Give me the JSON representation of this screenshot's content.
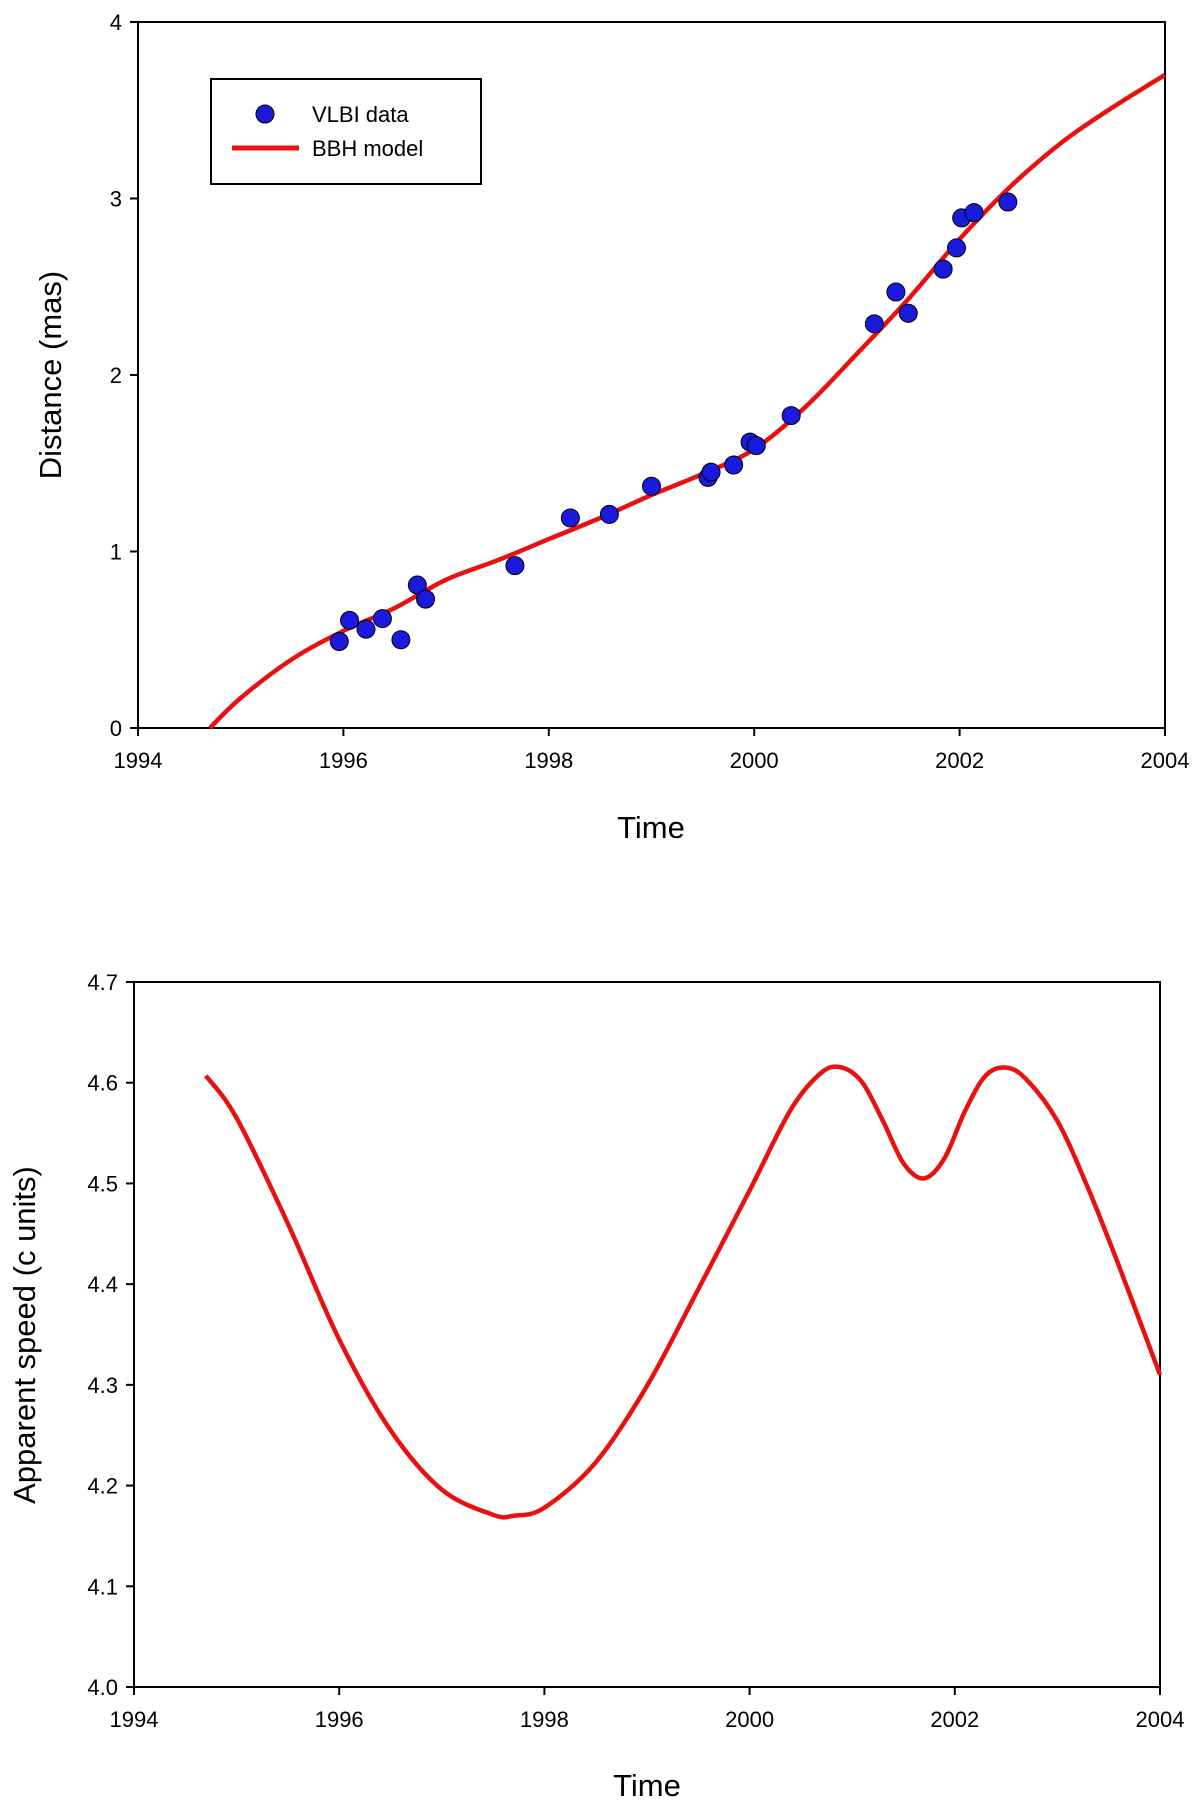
{
  "colors": {
    "data_points": "#1a1adc",
    "model_line": "#e8110f",
    "axes": "#000000"
  },
  "chart_data": [
    {
      "type": "scatter",
      "xlabel": "Time",
      "ylabel": "Distance (mas)",
      "xlim": [
        1994,
        2004
      ],
      "ylim": [
        0,
        4
      ],
      "xticks": [
        "1994",
        "1996",
        "1998",
        "2000",
        "2002",
        "2004"
      ],
      "yticks": [
        "0",
        "1",
        "2",
        "3",
        "4"
      ],
      "legend": {
        "position": "top-left",
        "entries": [
          "VLBI data",
          "BBH model"
        ]
      },
      "series": [
        {
          "name": "VLBI data",
          "marker": "circle",
          "points": [
            [
              1995.96,
              0.49
            ],
            [
              1996.06,
              0.61
            ],
            [
              1996.22,
              0.56
            ],
            [
              1996.38,
              0.62
            ],
            [
              1996.56,
              0.5
            ],
            [
              1996.72,
              0.81
            ],
            [
              1996.8,
              0.73
            ],
            [
              1997.67,
              0.92
            ],
            [
              1998.21,
              1.19
            ],
            [
              1998.59,
              1.21
            ],
            [
              1999.0,
              1.37
            ],
            [
              1999.55,
              1.42
            ],
            [
              1999.58,
              1.45
            ],
            [
              1999.8,
              1.49
            ],
            [
              1999.96,
              1.62
            ],
            [
              2000.02,
              1.6
            ],
            [
              2000.36,
              1.77
            ],
            [
              2001.17,
              2.29
            ],
            [
              2001.38,
              2.47
            ],
            [
              2001.5,
              2.35
            ],
            [
              2001.84,
              2.6
            ],
            [
              2001.97,
              2.72
            ],
            [
              2002.02,
              2.89
            ],
            [
              2002.14,
              2.92
            ],
            [
              2002.47,
              2.98
            ]
          ]
        },
        {
          "name": "BBH model",
          "line": true,
          "points": [
            [
              1994.7,
              0.0
            ],
            [
              1995.0,
              0.17
            ],
            [
              1995.5,
              0.39
            ],
            [
              1996.0,
              0.55
            ],
            [
              1996.5,
              0.68
            ],
            [
              1997.0,
              0.84
            ],
            [
              1997.5,
              0.95
            ],
            [
              1998.0,
              1.07
            ],
            [
              1998.5,
              1.19
            ],
            [
              1999.0,
              1.32
            ],
            [
              1999.5,
              1.44
            ],
            [
              2000.0,
              1.58
            ],
            [
              2000.5,
              1.82
            ],
            [
              2001.0,
              2.12
            ],
            [
              2001.5,
              2.43
            ],
            [
              2002.0,
              2.77
            ],
            [
              2002.5,
              3.07
            ],
            [
              2003.0,
              3.32
            ],
            [
              2003.5,
              3.52
            ],
            [
              2004.0,
              3.7
            ]
          ]
        }
      ]
    },
    {
      "type": "line",
      "xlabel": "Time",
      "ylabel": "Apparent speed (c units)",
      "xlim": [
        1994,
        2004
      ],
      "ylim": [
        4.0,
        4.7
      ],
      "xticks": [
        "1994",
        "1996",
        "1998",
        "2000",
        "2002",
        "2004"
      ],
      "yticks": [
        "4.0",
        "4.1",
        "4.2",
        "4.3",
        "4.4",
        "4.5",
        "4.6",
        "4.7"
      ],
      "series": [
        {
          "line": true,
          "points": [
            [
              1994.7,
              4.607
            ],
            [
              1995.0,
              4.565
            ],
            [
              1995.5,
              4.46
            ],
            [
              1996.0,
              4.345
            ],
            [
              1996.5,
              4.255
            ],
            [
              1997.0,
              4.196
            ],
            [
              1997.5,
              4.171
            ],
            [
              1997.7,
              4.17
            ],
            [
              1998.0,
              4.178
            ],
            [
              1998.5,
              4.223
            ],
            [
              1999.0,
              4.299
            ],
            [
              1999.5,
              4.395
            ],
            [
              2000.0,
              4.493
            ],
            [
              2000.4,
              4.573
            ],
            [
              2000.7,
              4.61
            ],
            [
              2000.9,
              4.615
            ],
            [
              2001.1,
              4.6
            ],
            [
              2001.3,
              4.562
            ],
            [
              2001.5,
              4.52
            ],
            [
              2001.7,
              4.505
            ],
            [
              2001.9,
              4.525
            ],
            [
              2002.1,
              4.572
            ],
            [
              2002.3,
              4.607
            ],
            [
              2002.5,
              4.615
            ],
            [
              2002.7,
              4.603
            ],
            [
              2003.0,
              4.562
            ],
            [
              2003.3,
              4.495
            ],
            [
              2003.6,
              4.418
            ],
            [
              2004.0,
              4.31
            ]
          ]
        }
      ]
    }
  ]
}
